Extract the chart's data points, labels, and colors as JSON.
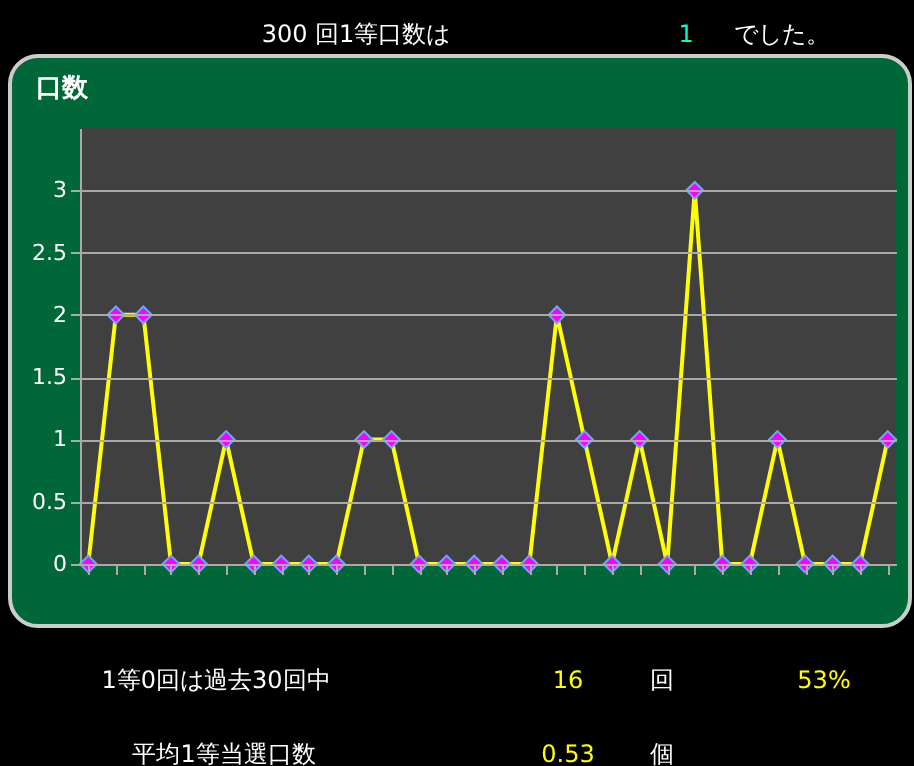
{
  "chart_data": {
    "type": "line",
    "title": "口数",
    "categories": [
      null,
      null,
      null,
      null,
      null,
      null,
      null,
      null,
      null,
      null,
      null,
      null,
      null,
      null,
      null,
      null,
      null,
      null,
      null,
      null,
      null,
      null,
      null,
      null,
      null,
      null,
      null,
      null,
      null,
      null
    ],
    "series": [
      {
        "color": "#ffff00",
        "values": [
          0,
          2,
          2,
          0,
          0,
          1,
          0,
          0,
          0,
          0,
          1,
          1,
          0,
          0,
          0,
          0,
          0,
          2,
          1,
          0,
          1,
          0,
          3,
          0,
          0,
          1,
          0,
          0,
          0,
          1
        ]
      }
    ],
    "ylim": [
      0,
      3.5
    ],
    "yticks": [
      0,
      0.5,
      1,
      1.5,
      2,
      2.5,
      3
    ],
    "grid": "y",
    "marker": "diamond",
    "line_style": "solid",
    "tick_labels": "y",
    "annotations": [
      "300 回1等口数は",
      "1",
      "でした。",
      "1等0回は過去30回中",
      "16",
      "回",
      "53%",
      "平均1等当選口数",
      "0.53",
      "個"
    ]
  }
}
